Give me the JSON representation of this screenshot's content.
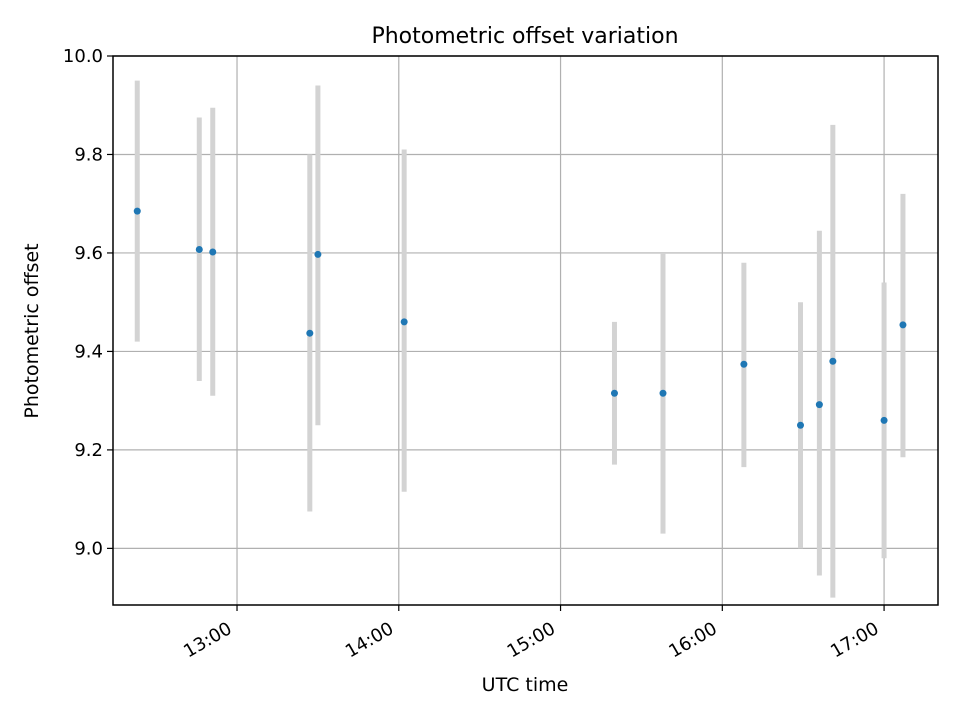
{
  "chart_data": {
    "type": "scatter",
    "title": "Photometric offset variation",
    "xlabel": "UTC time",
    "ylabel": "Photometric offset",
    "xlim": [
      "12:14",
      "17:20"
    ],
    "ylim": [
      8.885,
      10.0
    ],
    "x_ticks": [
      "13:00",
      "14:00",
      "15:00",
      "16:00",
      "17:00"
    ],
    "y_ticks": [
      "9.0",
      "9.2",
      "9.4",
      "9.6",
      "9.8",
      "10.0"
    ],
    "grid": true,
    "colors": {
      "point": "#1f77b4",
      "errorbar": "#d3d3d3",
      "grid": "#b0b0b0"
    },
    "points": [
      {
        "x": "12:23",
        "y": 9.685,
        "lo": 9.42,
        "hi": 9.95
      },
      {
        "x": "12:46",
        "y": 9.607,
        "lo": 9.34,
        "hi": 9.875
      },
      {
        "x": "12:51",
        "y": 9.602,
        "lo": 9.31,
        "hi": 9.895
      },
      {
        "x": "13:27",
        "y": 9.437,
        "lo": 9.075,
        "hi": 9.8
      },
      {
        "x": "13:30",
        "y": 9.597,
        "lo": 9.25,
        "hi": 9.94
      },
      {
        "x": "14:02",
        "y": 9.46,
        "lo": 9.115,
        "hi": 9.81
      },
      {
        "x": "15:20",
        "y": 9.315,
        "lo": 9.17,
        "hi": 9.46
      },
      {
        "x": "15:38",
        "y": 9.315,
        "lo": 9.03,
        "hi": 9.6
      },
      {
        "x": "16:08",
        "y": 9.374,
        "lo": 9.165,
        "hi": 9.58
      },
      {
        "x": "16:29",
        "y": 9.25,
        "lo": 9.0,
        "hi": 9.5
      },
      {
        "x": "16:36",
        "y": 9.292,
        "lo": 8.945,
        "hi": 9.645
      },
      {
        "x": "16:41",
        "y": 9.38,
        "lo": 8.9,
        "hi": 9.86
      },
      {
        "x": "17:00",
        "y": 9.26,
        "lo": 8.98,
        "hi": 9.54
      },
      {
        "x": "17:07",
        "y": 9.454,
        "lo": 9.185,
        "hi": 9.72
      }
    ]
  }
}
